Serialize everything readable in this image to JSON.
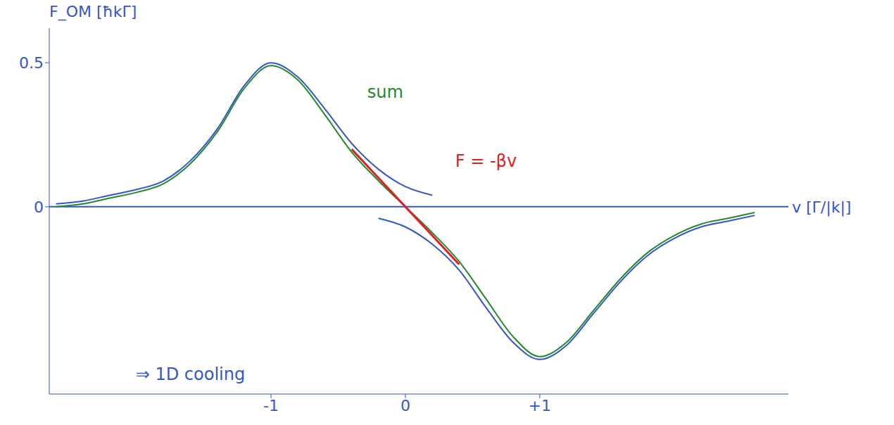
{
  "chart_data": {
    "type": "line",
    "y_label": "F_OM [ħkΓ]",
    "x_label": "v [Γ/|k|]",
    "x": [
      -2.6,
      -2.4,
      -2.2,
      -2.0,
      -1.8,
      -1.6,
      -1.4,
      -1.2,
      -1.0,
      -0.8,
      -0.6,
      -0.4,
      -0.2,
      0,
      0.2,
      0.4,
      0.6,
      0.8,
      1.0,
      1.2,
      1.4,
      1.6,
      1.8,
      2.0,
      2.2,
      2.4,
      2.6
    ],
    "xlim": [
      -2.65,
      2.85
    ],
    "xticks": [
      -1,
      0,
      {
        "value": 1,
        "label": "+1"
      }
    ],
    "ylim": [
      -0.65,
      0.62
    ],
    "yticks": [
      0,
      0.5
    ],
    "grid": false,
    "series": [
      {
        "color": "#3556c8",
        "values": [
          0.01,
          0.02,
          0.04,
          0.06,
          0.09,
          0.16,
          0.27,
          0.42,
          0.5,
          0.45,
          0.34,
          0.22,
          0.13,
          0.07,
          0.04,
          null,
          null,
          null,
          null,
          null,
          null,
          null,
          null,
          null,
          null,
          null,
          null
        ]
      },
      {
        "color": "#3556c8",
        "values": [
          null,
          null,
          null,
          null,
          null,
          null,
          null,
          null,
          null,
          null,
          null,
          null,
          -0.04,
          -0.07,
          -0.13,
          -0.22,
          -0.35,
          -0.47,
          -0.53,
          -0.48,
          -0.37,
          -0.26,
          -0.17,
          -0.11,
          -0.07,
          -0.05,
          -0.03
        ]
      },
      {
        "color": "#1f8a2e",
        "values": [
          0.0,
          0.01,
          0.03,
          0.05,
          0.08,
          0.15,
          0.26,
          0.41,
          0.49,
          0.44,
          0.32,
          0.19,
          0.09,
          0,
          -0.09,
          -0.19,
          -0.32,
          -0.45,
          -0.52,
          -0.47,
          -0.36,
          -0.25,
          -0.16,
          -0.1,
          -0.06,
          -0.04,
          -0.02
        ]
      },
      {
        "color": "#e02020",
        "values": [
          null,
          null,
          null,
          null,
          null,
          null,
          null,
          null,
          null,
          null,
          null,
          0.2,
          0.1,
          0,
          -0.1,
          -0.2,
          null,
          null,
          null,
          null,
          null,
          null,
          null,
          null,
          null,
          null,
          null
        ]
      }
    ],
    "annotations": [
      {
        "text": "sum",
        "x": -0.15,
        "y": 0.4,
        "color": "#1f8a2e"
      },
      {
        "text": "F = -βv",
        "x": 0.6,
        "y": 0.16,
        "color": "#e02020"
      },
      {
        "text": "⇒ 1D cooling",
        "x": -1.6,
        "y": -0.58,
        "color": "#3556c8"
      }
    ]
  }
}
